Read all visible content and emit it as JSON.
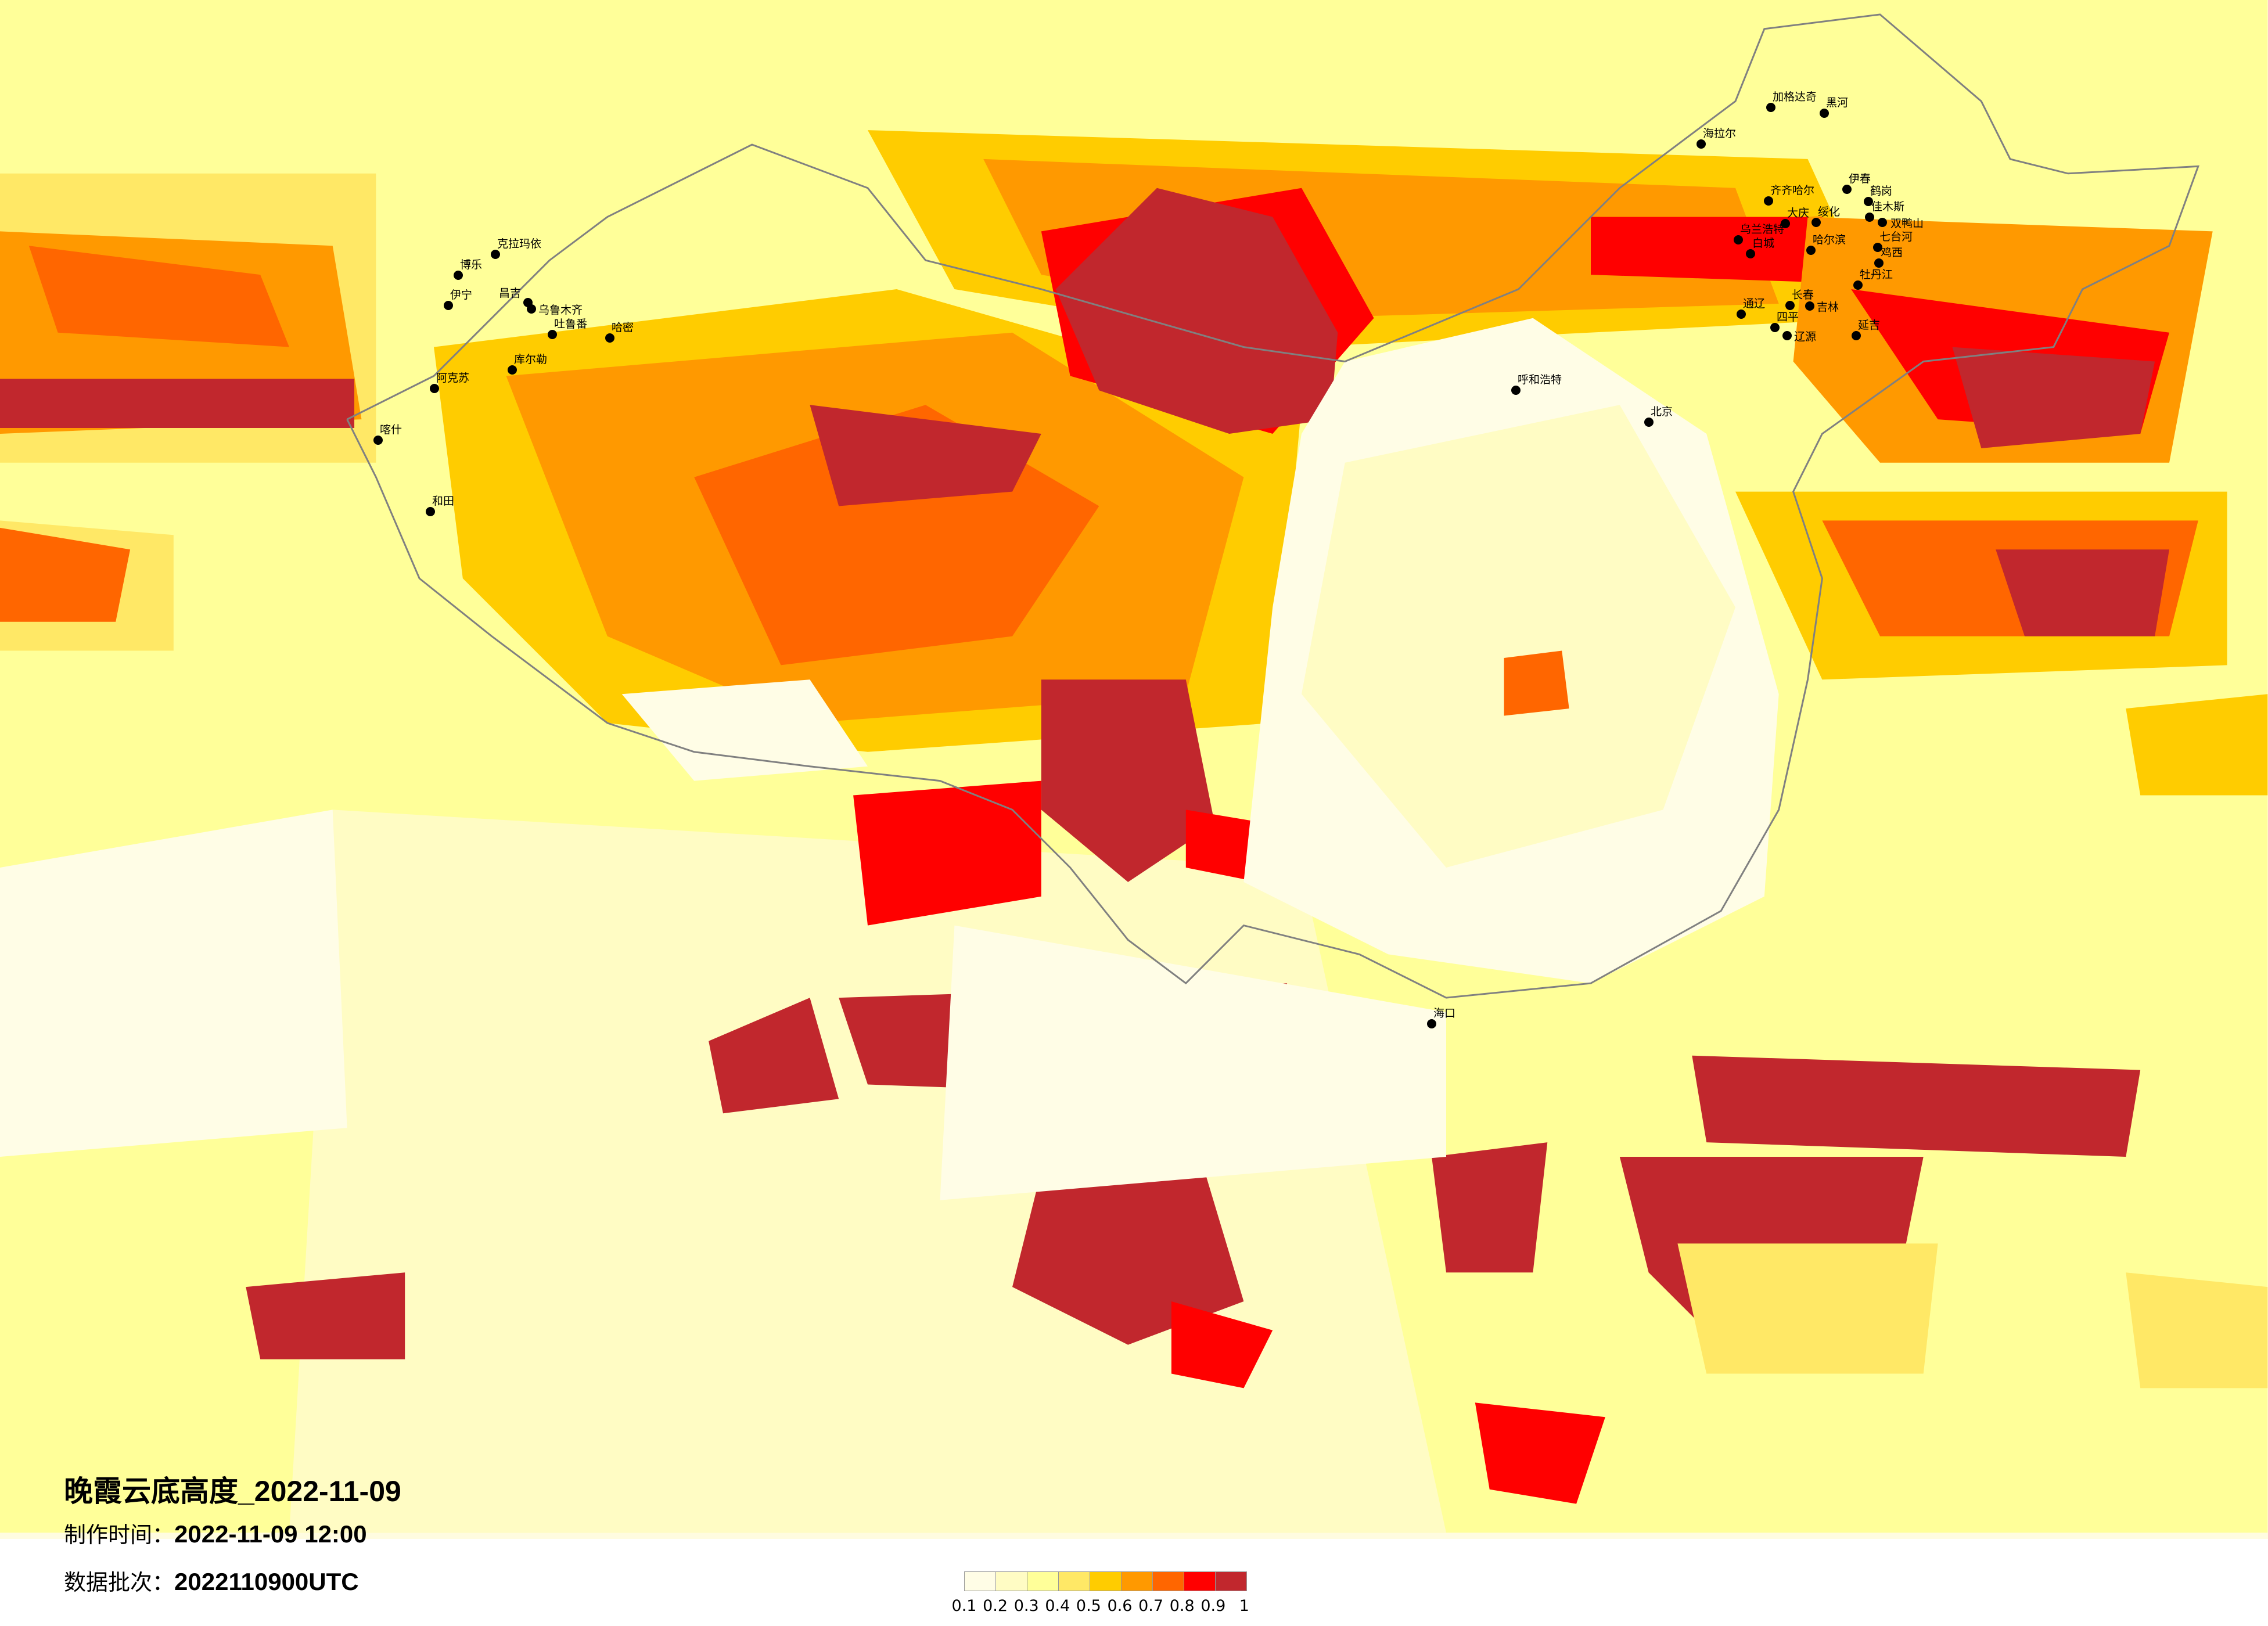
{
  "title": "晚霞云底高度_2022-11-09",
  "production_time": {
    "label": "制作时间：",
    "value": "2022-11-09 12:00"
  },
  "data_batch": {
    "label": "数据批次：",
    "value": "2022110900UTC"
  },
  "legend": {
    "ticks": [
      "0.1",
      "0.2",
      "0.3",
      "0.4",
      "0.5",
      "0.6",
      "0.7",
      "0.8",
      "0.9",
      "1"
    ],
    "colors": [
      "#fffde6",
      "#fffcc4",
      "#ffff99",
      "#ffe866",
      "#ffcc00",
      "#ff9900",
      "#ff6600",
      "#ff0000",
      "#c1272d"
    ]
  },
  "map": {
    "background_color": "#fffce0",
    "boundary_color": "#808080",
    "cities": [
      "克拉玛依",
      "博乐",
      "伊宁",
      "昌吉",
      "乌鲁木齐",
      "吐鲁番",
      "哈密",
      "库尔勒",
      "阿克苏",
      "喀什",
      "和田",
      "加格达奇",
      "黑河",
      "海拉尔",
      "齐齐哈尔",
      "伊春",
      "鹤岗",
      "佳木斯",
      "双鸭山",
      "大庆",
      "绥化",
      "乌兰浩特",
      "白城",
      "哈尔滨",
      "七台河",
      "鸡西",
      "牡丹江",
      "长春",
      "吉林",
      "通辽",
      "四平",
      "辽源",
      "延吉",
      "呼和浩特",
      "北京",
      "海口"
    ]
  }
}
